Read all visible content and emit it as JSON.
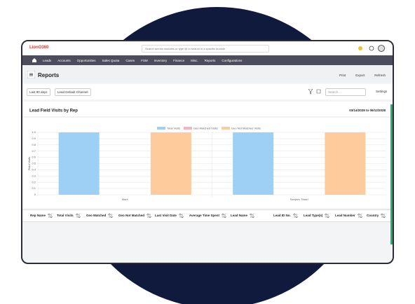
{
  "header": {
    "logo": "LionO360",
    "search_placeholder": "Search across modules or type @ to search in a specific module"
  },
  "nav": [
    "Leads",
    "Accounts",
    "Opportunities",
    "Sales Quota",
    "Cases",
    "FSM",
    "Inventory",
    "Finance",
    "Misc.",
    "Reports",
    "Configurations"
  ],
  "page": {
    "title": "Reports",
    "actions": [
      "Print",
      "Export",
      "Refresh"
    ]
  },
  "filters": {
    "date_range": "Last 90 days",
    "channel": "Lead Default Channel",
    "search_placeholder": "Search...",
    "settings": "Settings"
  },
  "chart_data": {
    "type": "bar",
    "title": "Lead Field Visits by Rep",
    "subtitle": "03/14/2028 to 06/12/2028",
    "y_label": "Field Visits",
    "categories": [
      "Mark",
      "Sanjeev Tiwari"
    ],
    "series": [
      {
        "name": "Total Visits",
        "color": "#9ecff5",
        "values": [
          1,
          1
        ]
      },
      {
        "name": "Geo Matched Visits",
        "color": "#f7b3c2",
        "values": [
          0,
          0
        ]
      },
      {
        "name": "Geo Not Matched Visits",
        "color": "#fdcb9c",
        "values": [
          1,
          1
        ]
      }
    ],
    "ylim": [
      0,
      1
    ],
    "yticks": [
      0,
      0.1,
      0.2,
      0.3,
      0.4,
      0.5,
      0.6,
      0.7,
      0.8,
      0.9,
      {
        "value": 1,
        "label": "1.0"
      }
    ],
    "grid": true,
    "legend": "top"
  },
  "table": {
    "columns": [
      "Rep Name",
      "Total Visits",
      "Geo Matched",
      "Geo Not Matched",
      "Last Visit Date",
      "Average Time Spent",
      "Lead Name",
      "Lead ID No.",
      "Lead Type(s)",
      "Lead Number",
      "Country"
    ]
  }
}
